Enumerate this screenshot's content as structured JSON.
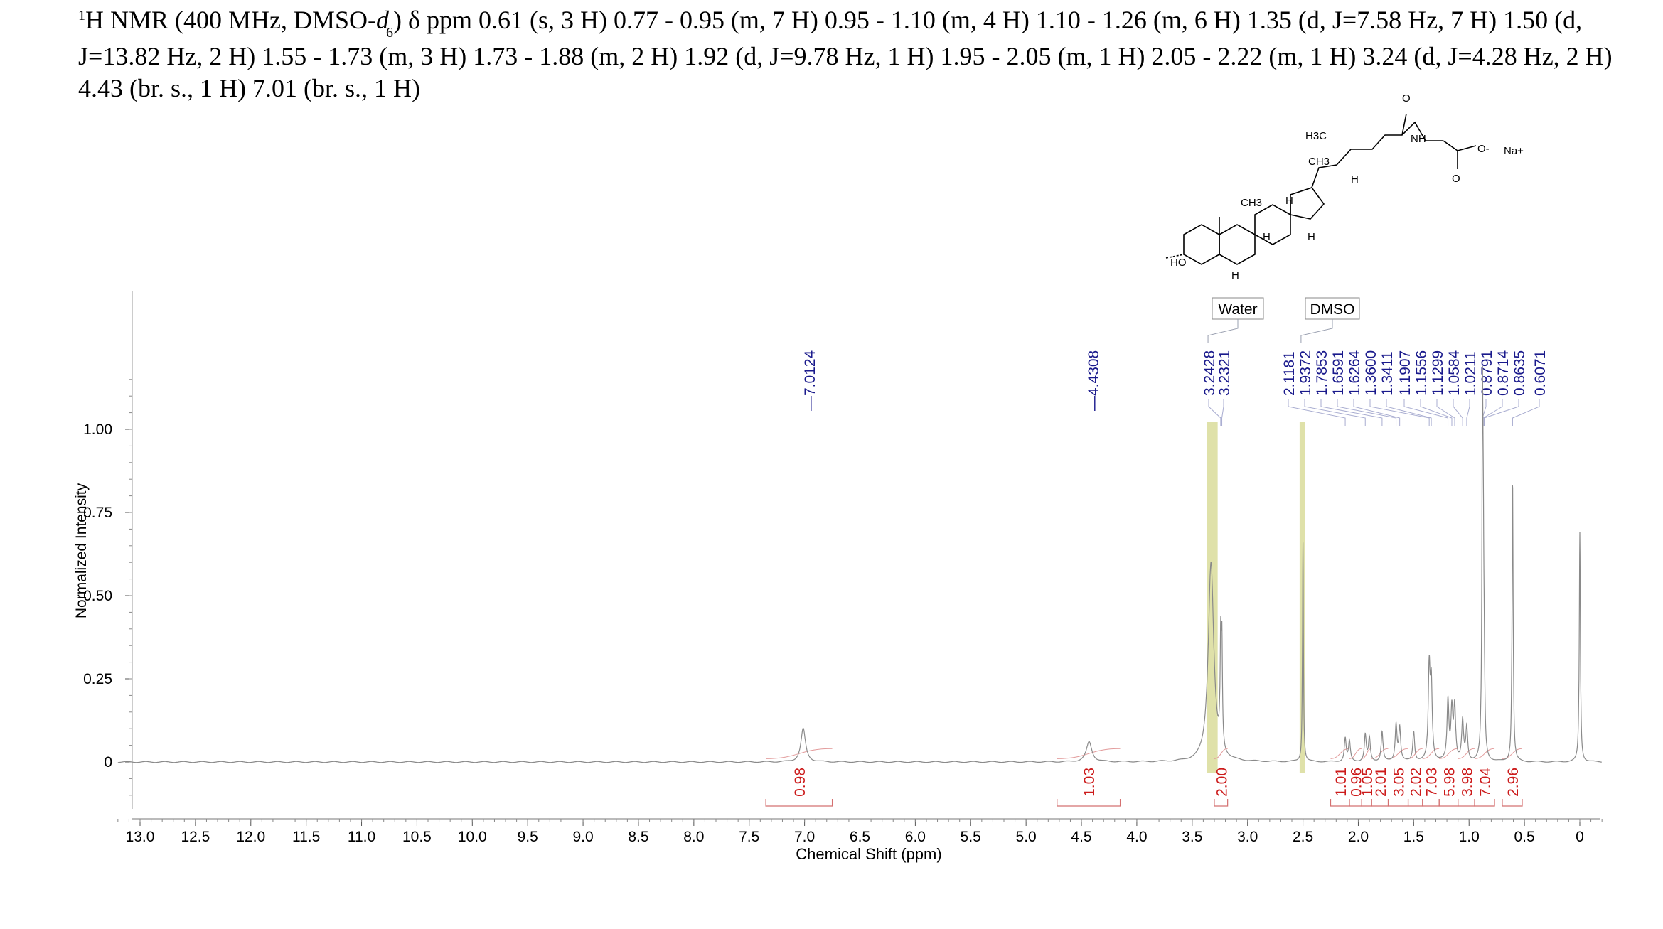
{
  "header": {
    "nucleus_sup": "1",
    "text_part1": "H NMR (400 MHz, DMSO-",
    "solvent_d": "d",
    "solvent_sub": "6",
    "text_part2": ") δ ppm 0.61 (s, 3 H) 0.77 - 0.95 (m, 7 H) 0.95 - 1.10 (m, 4 H) 1.10 - 1.26 (m, 6 H) 1.35 (d, J=7.58 Hz, 7 H) 1.50 (d, J=13.82 Hz, 2 H) 1.55 - 1.73 (m, 3 H) 1.73 - 1.88 (m, 2 H) 1.92 (d, J=9.78 Hz, 1 H) 1.95 - 2.05 (m, 1 H) 2.05 - 2.22 (m, 1 H) 3.24 (d, J=4.28 Hz, 2 H) 4.43 (br. s., 1 H) 7.01 (br. s., 1 H)"
  },
  "structure": {
    "labels": [
      "H3C",
      "CH3",
      "CH3",
      "H",
      "H",
      "H",
      "H",
      "H",
      "HO",
      "NH",
      "O",
      "O",
      "O-",
      "Na+"
    ]
  },
  "chart_data": {
    "type": "line",
    "xlabel": "Chemical Shift (ppm)",
    "ylabel": "Normalized Intensity",
    "xlim": [
      13.2,
      -0.2
    ],
    "ylim": [
      -0.2,
      1.2
    ],
    "x_ticks": [
      "13.0",
      "12.5",
      "12.0",
      "11.5",
      "11.0",
      "10.5",
      "10.0",
      "9.5",
      "9.0",
      "8.5",
      "8.0",
      "7.5",
      "7.0",
      "6.5",
      "6.0",
      "5.5",
      "5.0",
      "4.5",
      "4.0",
      "3.5",
      "3.0",
      "2.5",
      "2.0",
      "1.5",
      "1.0",
      "0.5",
      "0"
    ],
    "y_ticks": [
      "0",
      "0.25",
      "0.50",
      "0.75",
      "1.00"
    ],
    "y_tick_values": [
      0,
      0.25,
      0.5,
      0.75,
      1.0
    ],
    "solvent_regions": [
      {
        "label": "Water",
        "from": 3.37,
        "to": 3.27
      },
      {
        "label": "DMSO",
        "from": 2.53,
        "to": 2.48
      }
    ],
    "peak_labels": [
      "7.0124",
      "4.4308",
      "3.2428",
      "3.2321",
      "2.1181",
      "1.9372",
      "1.7853",
      "1.6591",
      "1.6264",
      "1.3600",
      "1.3411",
      "1.1907",
      "1.1556",
      "1.1299",
      "1.0584",
      "1.0211",
      "0.8791",
      "0.8714",
      "0.8635",
      "0.6071"
    ],
    "integrations": [
      {
        "value": "0.98",
        "from": 7.35,
        "to": 6.75
      },
      {
        "value": "1.03",
        "from": 4.72,
        "to": 4.15
      },
      {
        "value": "2.00",
        "from": 3.3,
        "to": 3.18
      },
      {
        "value": "1.01",
        "from": 2.25,
        "to": 2.08
      },
      {
        "value": "0.96",
        "from": 2.08,
        "to": 1.97
      },
      {
        "value": "1.05",
        "from": 1.97,
        "to": 1.88
      },
      {
        "value": "2.01",
        "from": 1.88,
        "to": 1.73
      },
      {
        "value": "3.05",
        "from": 1.73,
        "to": 1.55
      },
      {
        "value": "2.02",
        "from": 1.55,
        "to": 1.42
      },
      {
        "value": "7.03",
        "from": 1.42,
        "to": 1.27
      },
      {
        "value": "5.98",
        "from": 1.27,
        "to": 1.1
      },
      {
        "value": "3.98",
        "from": 1.1,
        "to": 0.95
      },
      {
        "value": "7.04",
        "from": 0.95,
        "to": 0.77
      },
      {
        "value": "2.96",
        "from": 0.7,
        "to": 0.52
      }
    ],
    "peaks": [
      {
        "ppm": 7.0124,
        "height": 0.1,
        "width": 0.025
      },
      {
        "ppm": 4.4308,
        "height": 0.06,
        "width": 0.03
      },
      {
        "ppm": 3.33,
        "height": 0.6,
        "width": 0.03
      },
      {
        "ppm": 3.2428,
        "height": 0.3,
        "width": 0.006
      },
      {
        "ppm": 3.2321,
        "height": 0.3,
        "width": 0.006
      },
      {
        "ppm": 2.5,
        "height": 0.66,
        "width": 0.005
      },
      {
        "ppm": 2.1181,
        "height": 0.07,
        "width": 0.01
      },
      {
        "ppm": 2.08,
        "height": 0.06,
        "width": 0.01
      },
      {
        "ppm": 1.9372,
        "height": 0.08,
        "width": 0.01
      },
      {
        "ppm": 1.9,
        "height": 0.07,
        "width": 0.01
      },
      {
        "ppm": 1.7853,
        "height": 0.09,
        "width": 0.01
      },
      {
        "ppm": 1.6591,
        "height": 0.11,
        "width": 0.01
      },
      {
        "ppm": 1.6264,
        "height": 0.1,
        "width": 0.01
      },
      {
        "ppm": 1.5,
        "height": 0.09,
        "width": 0.01
      },
      {
        "ppm": 1.36,
        "height": 0.27,
        "width": 0.01
      },
      {
        "ppm": 1.3411,
        "height": 0.22,
        "width": 0.01
      },
      {
        "ppm": 1.1907,
        "height": 0.18,
        "width": 0.01
      },
      {
        "ppm": 1.1556,
        "height": 0.15,
        "width": 0.01
      },
      {
        "ppm": 1.1299,
        "height": 0.16,
        "width": 0.01
      },
      {
        "ppm": 1.0584,
        "height": 0.12,
        "width": 0.01
      },
      {
        "ppm": 1.0211,
        "height": 0.1,
        "width": 0.01
      },
      {
        "ppm": 0.8791,
        "height": 1.0,
        "width": 0.006
      },
      {
        "ppm": 0.8714,
        "height": 0.42,
        "width": 0.006
      },
      {
        "ppm": 0.8635,
        "height": 0.2,
        "width": 0.006
      },
      {
        "ppm": 0.6071,
        "height": 0.85,
        "width": 0.006
      },
      {
        "ppm": 0.0,
        "height": 0.69,
        "width": 0.006
      }
    ]
  }
}
